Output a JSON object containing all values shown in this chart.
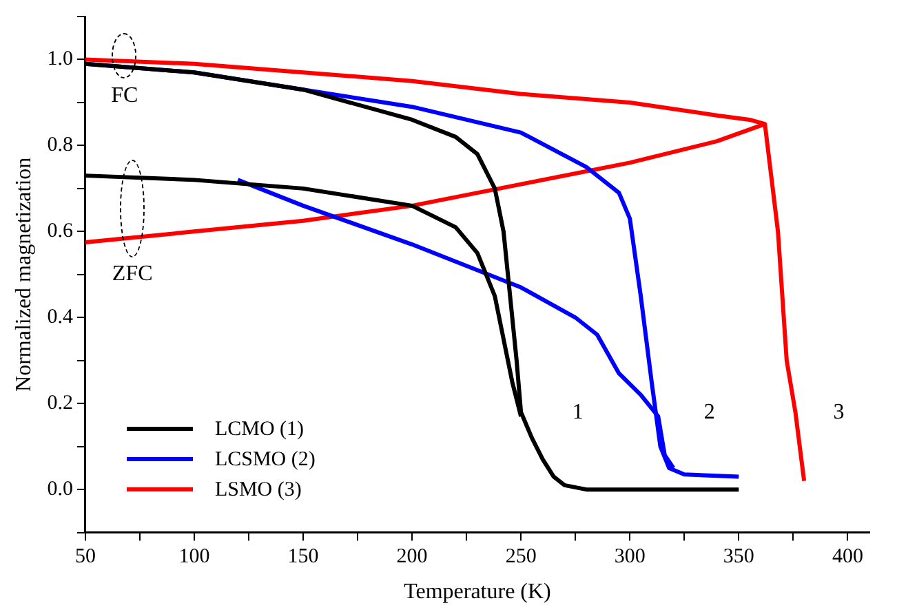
{
  "chart_data": {
    "type": "line",
    "xlabel": "Temperature (K)",
    "ylabel": "Normalized magnetization",
    "xlim": [
      50,
      410
    ],
    "xticks": [
      50,
      {
        "value": 75,
        "label": null
      },
      100,
      {
        "value": 125,
        "label": null
      },
      150,
      {
        "value": 175,
        "label": null
      },
      200,
      {
        "value": 225,
        "label": null
      },
      250,
      {
        "value": 275,
        "label": null
      },
      300,
      {
        "value": 325,
        "label": null
      },
      350,
      {
        "value": 375,
        "label": null
      },
      400
    ],
    "ylim": [
      -0.1,
      1.1
    ],
    "yticks": [
      {
        "value": -0.1,
        "label": null
      },
      {
        "value": 0,
        "label": "0.0"
      },
      {
        "value": 0.1,
        "label": null
      },
      0.2,
      {
        "value": 0.3,
        "label": null
      },
      0.4,
      {
        "value": 0.5,
        "label": null
      },
      0.6,
      {
        "value": 0.7,
        "label": null
      },
      0.8,
      {
        "value": 0.9,
        "label": null
      },
      {
        "value": 1.0,
        "label": "1.0"
      },
      {
        "value": 1.1,
        "label": null
      }
    ],
    "grid": false,
    "legend": "bottom left",
    "marker": "none",
    "line_style": "solid",
    "series": [
      {
        "name": "LCMO (1)",
        "color": "#000000",
        "x": [
          50,
          100,
          150,
          200,
          220,
          230,
          238,
          242,
          245,
          248,
          250,
          255,
          260,
          265,
          270,
          280,
          350
        ],
        "values": [
          0.99,
          0.97,
          0.93,
          0.86,
          0.82,
          0.78,
          0.7,
          0.6,
          0.45,
          0.3,
          0.18,
          0.12,
          0.07,
          0.03,
          0.01,
          0.0,
          0.0
        ]
      },
      {
        "color": "#000000",
        "x": [
          50,
          100,
          150,
          200,
          220,
          230,
          238,
          242,
          246,
          250
        ],
        "values": [
          0.73,
          0.72,
          0.7,
          0.66,
          0.61,
          0.55,
          0.45,
          0.35,
          0.25,
          0.17
        ]
      },
      {
        "name": "LCSMO (2)",
        "color": "#0000ff",
        "x": [
          50,
          100,
          150,
          200,
          250,
          280,
          295,
          300,
          305,
          310,
          314,
          318,
          325,
          350
        ],
        "values": [
          0.99,
          0.97,
          0.93,
          0.89,
          0.83,
          0.75,
          0.69,
          0.63,
          0.45,
          0.25,
          0.1,
          0.05,
          0.035,
          0.03
        ]
      },
      {
        "color": "#0000ff",
        "x": [
          120,
          150,
          200,
          250,
          275,
          285,
          295,
          305,
          313,
          316,
          320
        ],
        "values": [
          0.72,
          0.66,
          0.57,
          0.47,
          0.4,
          0.36,
          0.27,
          0.22,
          0.17,
          0.08,
          0.05
        ]
      },
      {
        "name": "LSMO (3)",
        "color": "#ff0000",
        "x": [
          50,
          100,
          150,
          200,
          250,
          300,
          340,
          355,
          362,
          368,
          372,
          376,
          380
        ],
        "values": [
          1.0,
          0.99,
          0.97,
          0.95,
          0.92,
          0.9,
          0.87,
          0.86,
          0.85,
          0.6,
          0.3,
          0.18,
          0.02
        ]
      },
      {
        "color": "#ff0000",
        "x": [
          50,
          100,
          150,
          200,
          250,
          300,
          340,
          362
        ],
        "values": [
          0.575,
          0.6,
          0.625,
          0.66,
          0.71,
          0.76,
          0.81,
          0.85
        ]
      }
    ],
    "annotations": [
      "FC",
      "ZFC",
      "1",
      "2",
      "3"
    ]
  }
}
